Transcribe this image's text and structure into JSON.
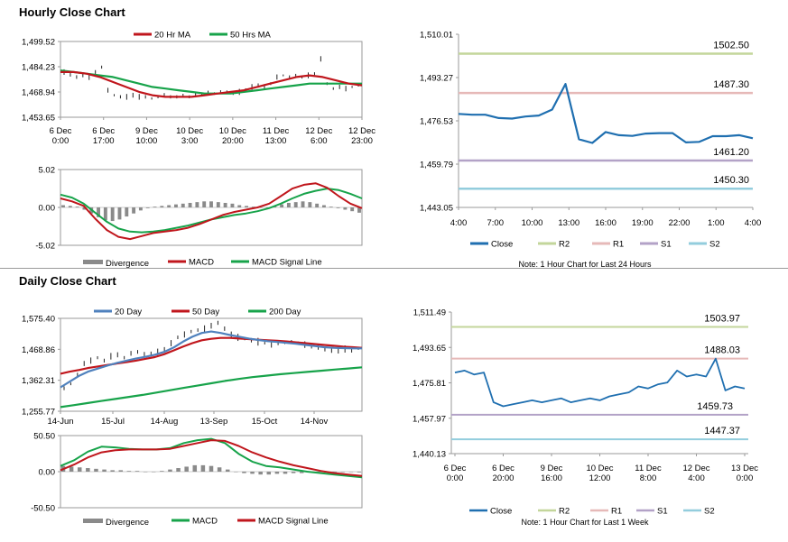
{
  "sections": {
    "hourly_title": "Hourly Close Chart",
    "daily_title": "Daily Close Chart"
  },
  "colors": {
    "red": "#c0161c",
    "green": "#17a34a",
    "blue": "#4f81bd",
    "close_blue": "#1f6fb0",
    "r2": "#c3d69b",
    "r1": "#e6b9b8",
    "s1": "#b3a2c7",
    "s2": "#93cddd",
    "bar": "#8a8a8a",
    "frame": "#9a9a9a"
  },
  "chart_data": [
    {
      "id": "hourly-price",
      "type": "line",
      "subtype": "ohlc-with-moving-averages",
      "title": "",
      "ylim": [
        1453.65,
        1499.52
      ],
      "y_ticks": [
        "1,499.52",
        "1,484.23",
        "1,468.94",
        "1,453.65"
      ],
      "x_ticks": [
        "6 Dec\n0:00",
        "6 Dec\n17:00",
        "9 Dec\n10:00",
        "10 Dec\n3:00",
        "10 Dec\n20:00",
        "11 Dec\n13:00",
        "12 Dec\n6:00",
        "12 Dec\n23:00"
      ],
      "legend": [
        "20 Hr MA",
        "50 Hrs MA"
      ],
      "price_path": [
        1481,
        1480,
        1478,
        1479,
        1478,
        1481,
        1484,
        1470,
        1467,
        1466,
        1466,
        1467,
        1466,
        1466,
        1465,
        1466,
        1467,
        1466,
        1466,
        1467,
        1466,
        1467,
        1468,
        1469,
        1468,
        1469,
        1469,
        1468,
        1469,
        1470,
        1472,
        1473,
        1472,
        1474,
        1478,
        1479,
        1478,
        1479,
        1478,
        1479,
        1480,
        1489,
        1474,
        1471,
        1472,
        1471,
        1472,
        1473
      ],
      "series": [
        {
          "name": "20 Hr MA",
          "values": [
            1481,
            1481,
            1480,
            1478,
            1475,
            1472,
            1469,
            1467,
            1466,
            1466,
            1466,
            1467,
            1468,
            1469,
            1470,
            1472,
            1474,
            1476,
            1478,
            1479,
            1478,
            1476,
            1474,
            1473
          ]
        },
        {
          "name": "50 Hrs MA",
          "values": [
            1482,
            1481,
            1480,
            1479,
            1478,
            1476,
            1474,
            1472,
            1471,
            1470,
            1469,
            1468,
            1468,
            1468,
            1469,
            1470,
            1471,
            1472,
            1473,
            1474,
            1474,
            1474,
            1474,
            1474
          ]
        }
      ]
    },
    {
      "id": "hourly-macd",
      "type": "bar",
      "subtype": "macd",
      "ylim": [
        -5.02,
        5.02
      ],
      "y_ticks": [
        "5.02",
        "0.00",
        "-5.02"
      ],
      "legend": [
        "Divergence",
        "MACD",
        "MACD Signal Line"
      ],
      "divergence": [
        0.3,
        0.2,
        0.1,
        -0.3,
        -0.8,
        -1.3,
        -1.7,
        -1.8,
        -1.6,
        -1.2,
        -0.8,
        -0.4,
        -0.1,
        0.1,
        0.2,
        0.3,
        0.4,
        0.5,
        0.6,
        0.7,
        0.8,
        0.8,
        0.7,
        0.6,
        0.5,
        0.3,
        0.2,
        0.1,
        0.0,
        0.0,
        0.2,
        0.4,
        0.6,
        0.7,
        0.8,
        0.7,
        0.5,
        0.3,
        0.1,
        -0.1,
        -0.3,
        -0.5,
        -0.7
      ],
      "series": [
        {
          "name": "MACD",
          "values": [
            1.2,
            0.8,
            0.2,
            -1.5,
            -3.0,
            -3.9,
            -4.2,
            -3.8,
            -3.4,
            -3.2,
            -3.0,
            -2.7,
            -2.2,
            -1.6,
            -1.0,
            -0.6,
            -0.3,
            0.0,
            0.5,
            1.5,
            2.5,
            3.0,
            3.2,
            2.6,
            1.5,
            0.5,
            -0.1
          ]
        },
        {
          "name": "MACD Signal Line",
          "values": [
            1.7,
            1.3,
            0.5,
            -0.7,
            -1.9,
            -2.8,
            -3.2,
            -3.3,
            -3.2,
            -3.0,
            -2.7,
            -2.4,
            -2.0,
            -1.6,
            -1.3,
            -1.0,
            -0.8,
            -0.5,
            -0.1,
            0.5,
            1.2,
            1.8,
            2.2,
            2.5,
            2.3,
            1.8,
            1.2
          ]
        }
      ]
    },
    {
      "id": "hourly-close-pivots",
      "type": "line",
      "ylim": [
        1443.05,
        1510.01
      ],
      "y_ticks": [
        "1,510.01",
        "1,493.27",
        "1,476.53",
        "1,459.79",
        "1,443.05"
      ],
      "x_ticks": [
        "4:00",
        "7:00",
        "10:00",
        "13:00",
        "16:00",
        "19:00",
        "22:00",
        "1:00",
        "4:00"
      ],
      "series": [
        {
          "name": "Close",
          "values": [
            1479.2,
            1478.9,
            1478.9,
            1477.6,
            1477.4,
            1478.2,
            1478.6,
            1480.9,
            1490.8,
            1469.4,
            1468.0,
            1472.2,
            1471.0,
            1470.7,
            1471.6,
            1471.8,
            1471.8,
            1468.2,
            1468.4,
            1470.6,
            1470.6,
            1471.0,
            1469.8
          ]
        },
        {
          "name": "R2",
          "value": 1502.5
        },
        {
          "name": "R1",
          "value": 1487.3
        },
        {
          "name": "S1",
          "value": 1461.2
        },
        {
          "name": "S2",
          "value": 1450.3
        }
      ],
      "level_labels": [
        "1502.50",
        "1487.30",
        "1461.20",
        "1450.30"
      ],
      "legend": [
        "Close",
        "R2",
        "R1",
        "S1",
        "S2"
      ],
      "note": "Note: 1 Hour Chart for Last 24 Hours"
    },
    {
      "id": "daily-price",
      "type": "line",
      "subtype": "ohlc-with-moving-averages",
      "ylim": [
        1255.77,
        1575.4
      ],
      "y_ticks": [
        "1,575.40",
        "1,468.86",
        "1,362.31",
        "1,255.77"
      ],
      "x_ticks": [
        "14-Jun",
        "15-Jul",
        "14-Aug",
        "13-Sep",
        "15-Oct",
        "14-Nov"
      ],
      "legend": [
        "20 Day",
        "50 Day",
        "200 Day"
      ],
      "price_path": [
        1335,
        1350,
        1380,
        1420,
        1430,
        1440,
        1430,
        1445,
        1450,
        1440,
        1455,
        1460,
        1450,
        1455,
        1460,
        1470,
        1490,
        1510,
        1520,
        1530,
        1535,
        1540,
        1550,
        1560,
        1540,
        1520,
        1510,
        1505,
        1500,
        1495,
        1490,
        1485,
        1488,
        1492,
        1496,
        1490,
        1485,
        1480,
        1475,
        1470,
        1465,
        1465,
        1470,
        1468,
        1472
      ],
      "series": [
        {
          "name": "20 Day",
          "values": [
            1338,
            1358,
            1378,
            1393,
            1403,
            1413,
            1422,
            1430,
            1437,
            1443,
            1450,
            1460,
            1475,
            1495,
            1512,
            1525,
            1530,
            1525,
            1518,
            1512,
            1506,
            1501,
            1497,
            1494,
            1491,
            1488,
            1484,
            1480,
            1476,
            1474,
            1473,
            1472,
            1472
          ]
        },
        {
          "name": "50 Day",
          "values": [
            1385,
            1392,
            1398,
            1405,
            1410,
            1415,
            1420,
            1425,
            1430,
            1436,
            1442,
            1452,
            1465,
            1478,
            1490,
            1500,
            1505,
            1508,
            1508,
            1506,
            1504,
            1502,
            1500,
            1498,
            1496,
            1493,
            1490,
            1487,
            1484,
            1481,
            1478,
            1476,
            1474
          ]
        },
        {
          "name": "200 Day",
          "values": [
            1270,
            1277,
            1284,
            1291,
            1298,
            1305,
            1312,
            1320,
            1328,
            1336,
            1344,
            1352,
            1360,
            1367,
            1373,
            1378,
            1383,
            1387,
            1391,
            1395,
            1399,
            1403,
            1407
          ]
        }
      ]
    },
    {
      "id": "daily-macd",
      "type": "bar",
      "subtype": "macd",
      "ylim": [
        -50.5,
        50.5
      ],
      "y_ticks": [
        "50.50",
        "0.00",
        "-50.50"
      ],
      "legend": [
        "Divergence",
        "MACD",
        "MACD Signal Line"
      ],
      "divergence": [
        8,
        7,
        6,
        5,
        4,
        3,
        2,
        2,
        1,
        1,
        0,
        0,
        1,
        3,
        5,
        7,
        9,
        9,
        8,
        6,
        3,
        0,
        -2,
        -3,
        -4,
        -4,
        -3,
        -3,
        -2,
        -2,
        -1,
        -1,
        -1,
        -1,
        0,
        0,
        -1
      ],
      "series": [
        {
          "name": "MACD",
          "values": [
            8,
            16,
            28,
            35,
            34,
            32,
            31,
            31,
            33,
            40,
            44,
            46,
            40,
            25,
            14,
            8,
            6,
            3,
            0,
            -2,
            -4,
            -6,
            -8
          ]
        },
        {
          "name": "MACD Signal Line",
          "values": [
            2,
            10,
            20,
            27,
            30,
            31,
            31,
            31,
            32,
            36,
            40,
            44,
            43,
            36,
            27,
            20,
            14,
            9,
            5,
            1,
            -2,
            -4,
            -6
          ]
        }
      ]
    },
    {
      "id": "daily-close-pivots",
      "type": "line",
      "ylim": [
        1440.13,
        1511.49
      ],
      "y_ticks": [
        "1,511.49",
        "1,493.65",
        "1,475.81",
        "1,457.97",
        "1,440.13"
      ],
      "x_ticks": [
        "6 Dec\n0:00",
        "6 Dec\n20:00",
        "9 Dec\n16:00",
        "10 Dec\n12:00",
        "11 Dec\n8:00",
        "12 Dec\n4:00",
        "13 Dec\n0:00"
      ],
      "series": [
        {
          "name": "Close",
          "values": [
            1481,
            1482,
            1480,
            1481,
            1466,
            1464,
            1465,
            1466,
            1467,
            1466,
            1467,
            1468,
            1466,
            1467,
            1468,
            1467,
            1469,
            1470,
            1471,
            1474,
            1473,
            1475,
            1476,
            1482,
            1479,
            1480,
            1479,
            1488,
            1472,
            1474,
            1473
          ]
        },
        {
          "name": "R2",
          "value": 1503.97
        },
        {
          "name": "R1",
          "value": 1488.03
        },
        {
          "name": "S1",
          "value": 1459.73
        },
        {
          "name": "S2",
          "value": 1447.37
        }
      ],
      "level_labels": [
        "1503.97",
        "1488.03",
        "1459.73",
        "1447.37"
      ],
      "legend": [
        "Close",
        "R2",
        "R1",
        "S1",
        "S2"
      ],
      "note": "Note: 1 Hour Chart for Last 1 Week"
    }
  ]
}
